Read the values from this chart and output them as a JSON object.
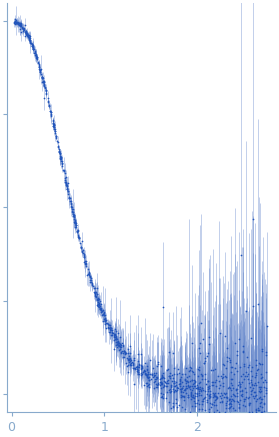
{
  "title": "",
  "xlabel": "",
  "ylabel": "",
  "xlim": [
    -0.05,
    2.85
  ],
  "ylim": [
    -0.05,
    1.05
  ],
  "x_ticks": [
    0,
    1,
    2
  ],
  "dot_color": "#2255bb",
  "error_color": "#6688cc",
  "dot_size": 1.5,
  "axis_color": "#88aacc",
  "tick_color": "#88aacc",
  "background": "#ffffff",
  "seed": 42,
  "n_points_low_q": 700,
  "n_points_high_q": 500
}
